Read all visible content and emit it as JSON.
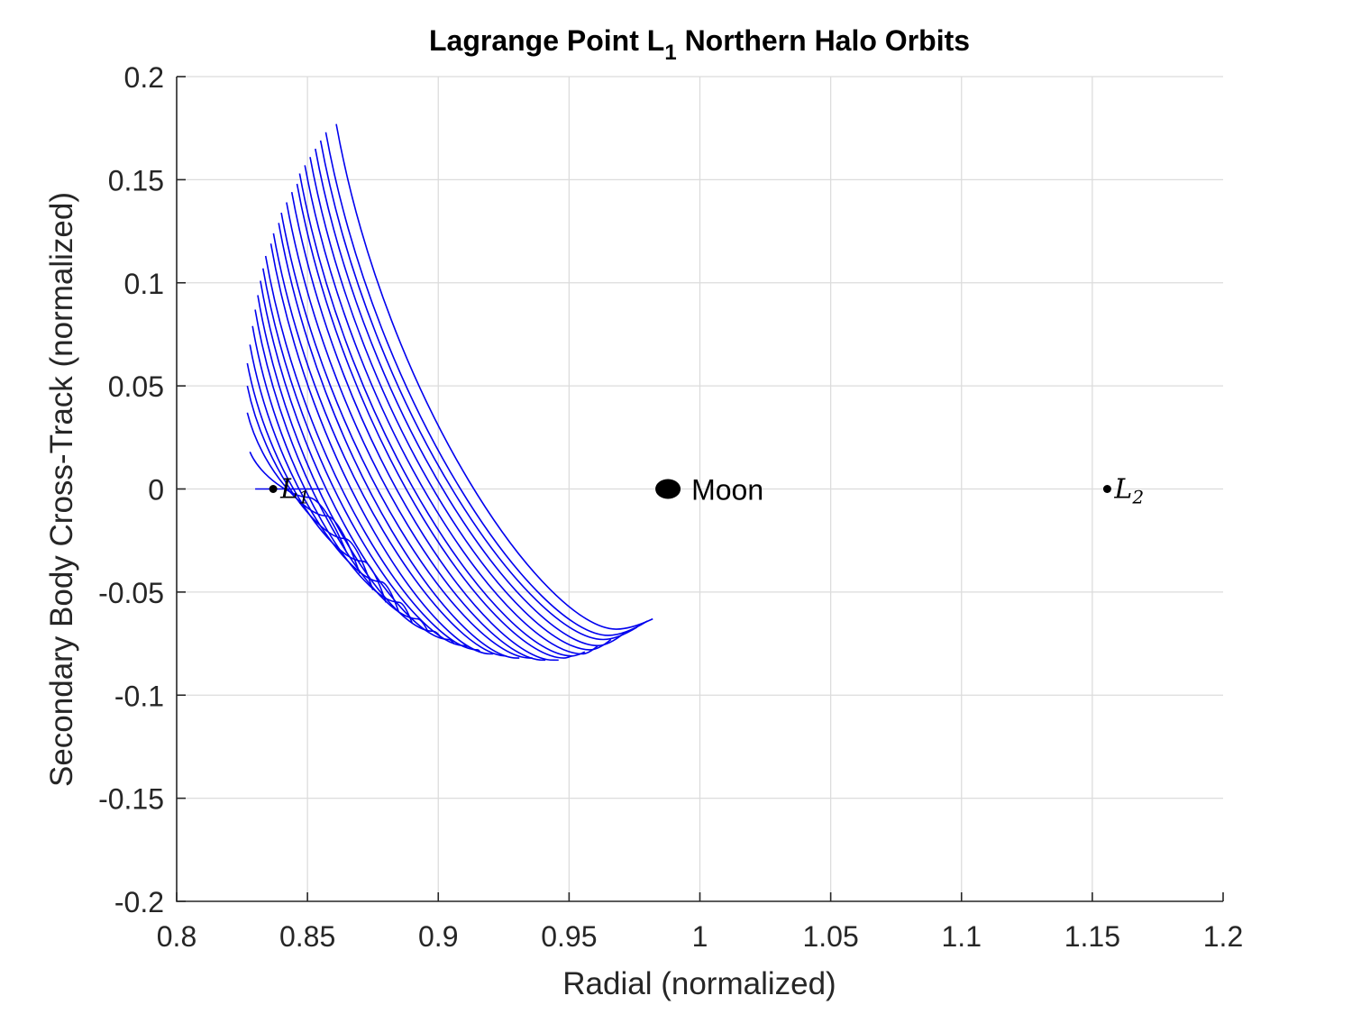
{
  "chart_data": {
    "type": "line",
    "title": "Lagrange Point L",
    "title_subscript": "1",
    "title_suffix": " Northern Halo Orbits",
    "xlabel": "Radial (normalized)",
    "ylabel": "Secondary Body Cross-Track (normalized)",
    "xlim": [
      0.8,
      1.2
    ],
    "ylim": [
      -0.2,
      0.2
    ],
    "x_ticks": [
      0.8,
      0.85,
      0.9,
      0.95,
      1.0,
      1.05,
      1.1,
      1.15,
      1.2
    ],
    "x_tick_labels": [
      "0.8",
      "0.85",
      "0.9",
      "0.95",
      "1",
      "1.05",
      "1.1",
      "1.15",
      "1.2"
    ],
    "y_ticks": [
      0.2,
      0.15,
      0.1,
      0.05,
      0,
      -0.05,
      -0.1,
      -0.15,
      -0.2
    ],
    "y_tick_labels": [
      "0.2",
      "0.15",
      "0.1",
      "0.05",
      "0",
      "-0.05",
      "-0.1",
      "-0.15",
      "-0.2"
    ],
    "grid": true,
    "series_color": "#0000ee",
    "orbits": [
      {
        "start": [
          0.83,
          0.0
        ],
        "bottom": [
          0.843,
          0.0
        ],
        "end": [
          0.856,
          0.0
        ]
      },
      {
        "start": [
          0.828,
          0.018
        ],
        "bottom": [
          0.85,
          -0.004
        ],
        "end": [
          0.865,
          -0.031
        ]
      },
      {
        "start": [
          0.827,
          0.037
        ],
        "bottom": [
          0.857,
          -0.013
        ],
        "end": [
          0.87,
          -0.041
        ]
      },
      {
        "start": [
          0.827,
          0.05
        ],
        "bottom": [
          0.864,
          -0.024
        ],
        "end": [
          0.875,
          -0.049
        ]
      },
      {
        "start": [
          0.827,
          0.061
        ],
        "bottom": [
          0.871,
          -0.035
        ],
        "end": [
          0.88,
          -0.055
        ]
      },
      {
        "start": [
          0.828,
          0.07
        ],
        "bottom": [
          0.878,
          -0.045
        ],
        "end": [
          0.885,
          -0.06
        ]
      },
      {
        "start": [
          0.829,
          0.079
        ],
        "bottom": [
          0.885,
          -0.055
        ],
        "end": [
          0.89,
          -0.065
        ]
      },
      {
        "start": [
          0.83,
          0.087
        ],
        "bottom": [
          0.892,
          -0.063
        ],
        "end": [
          0.896,
          -0.069
        ]
      },
      {
        "start": [
          0.831,
          0.094
        ],
        "bottom": [
          0.898,
          -0.069
        ],
        "end": [
          0.901,
          -0.072
        ]
      },
      {
        "start": [
          0.832,
          0.101
        ],
        "bottom": [
          0.904,
          -0.073
        ],
        "end": [
          0.906,
          -0.075
        ]
      },
      {
        "start": [
          0.833,
          0.107
        ],
        "bottom": [
          0.91,
          -0.076
        ],
        "end": [
          0.911,
          -0.077
        ]
      },
      {
        "start": [
          0.834,
          0.113
        ],
        "bottom": [
          0.915,
          -0.078
        ],
        "end": [
          0.916,
          -0.079
        ]
      },
      {
        "start": [
          0.836,
          0.119
        ],
        "bottom": [
          0.92,
          -0.08
        ],
        "end": [
          0.921,
          -0.08
        ]
      },
      {
        "start": [
          0.837,
          0.124
        ],
        "bottom": [
          0.926,
          -0.081
        ],
        "end": [
          0.926,
          -0.081
        ]
      },
      {
        "start": [
          0.839,
          0.129
        ],
        "bottom": [
          0.93,
          -0.082
        ],
        "end": [
          0.931,
          -0.082
        ]
      },
      {
        "start": [
          0.84,
          0.134
        ],
        "bottom": [
          0.935,
          -0.082
        ],
        "end": [
          0.936,
          -0.082
        ]
      },
      {
        "start": [
          0.842,
          0.139
        ],
        "bottom": [
          0.94,
          -0.083
        ],
        "end": [
          0.941,
          -0.083
        ]
      },
      {
        "start": [
          0.844,
          0.144
        ],
        "bottom": [
          0.944,
          -0.083
        ],
        "end": [
          0.946,
          -0.083
        ]
      },
      {
        "start": [
          0.846,
          0.148
        ],
        "bottom": [
          0.948,
          -0.082
        ],
        "end": [
          0.951,
          -0.081
        ]
      },
      {
        "start": [
          0.847,
          0.153
        ],
        "bottom": [
          0.951,
          -0.081
        ],
        "end": [
          0.956,
          -0.079
        ]
      },
      {
        "start": [
          0.849,
          0.157
        ],
        "bottom": [
          0.955,
          -0.08
        ],
        "end": [
          0.961,
          -0.076
        ]
      },
      {
        "start": [
          0.851,
          0.161
        ],
        "bottom": [
          0.958,
          -0.078
        ],
        "end": [
          0.966,
          -0.073
        ]
      },
      {
        "start": [
          0.853,
          0.165
        ],
        "bottom": [
          0.961,
          -0.076
        ],
        "end": [
          0.971,
          -0.07
        ]
      },
      {
        "start": [
          0.855,
          0.169
        ],
        "bottom": [
          0.963,
          -0.073
        ],
        "end": [
          0.976,
          -0.067
        ]
      },
      {
        "start": [
          0.857,
          0.173
        ],
        "bottom": [
          0.965,
          -0.071
        ],
        "end": [
          0.98,
          -0.064
        ]
      },
      {
        "start": [
          0.861,
          0.177
        ],
        "bottom": [
          0.968,
          -0.068
        ],
        "end": [
          0.982,
          -0.063
        ]
      }
    ],
    "points": [
      {
        "name": "L",
        "sub": "1",
        "x": 0.8369,
        "y": 0
      },
      {
        "name": "Moon",
        "x": 0.9878,
        "y": 0
      },
      {
        "name": "L",
        "sub": "2",
        "x": 1.1557,
        "y": 0
      }
    ]
  }
}
